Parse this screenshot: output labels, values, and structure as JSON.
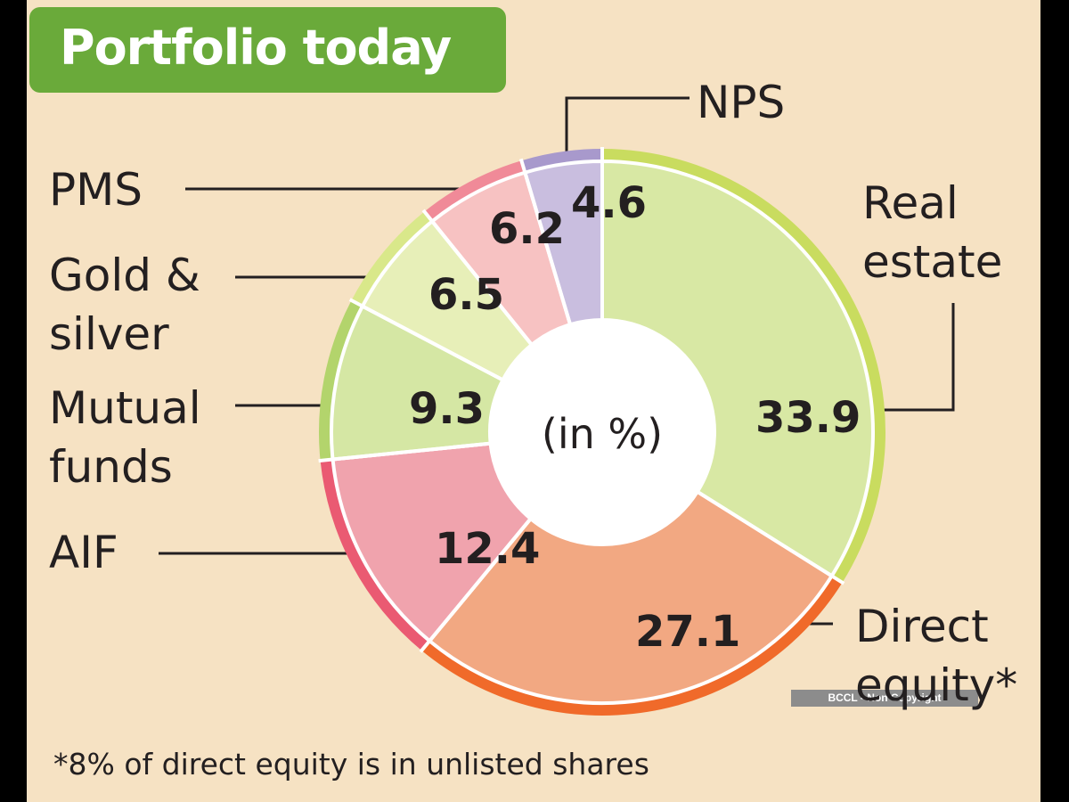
{
  "header": {
    "title": "Portfolio today"
  },
  "chart_data": {
    "type": "pie",
    "subtype": "donut",
    "center_label": "(in %)",
    "categories": [
      "Real estate",
      "Direct equity*",
      "AIF",
      "Mutual funds",
      "Gold & silver",
      "PMS",
      "NPS"
    ],
    "values": [
      33.9,
      27.1,
      12.4,
      9.3,
      6.5,
      6.2,
      4.6
    ],
    "value_labels": [
      "33.9",
      "27.1",
      "12.4",
      "9.3",
      "6.5",
      "6.2",
      "4.6"
    ],
    "label_lines": {
      "Real estate": [
        "Real",
        "estate"
      ],
      "Direct equity*": [
        "Direct",
        "equity*"
      ],
      "AIF": [
        "AIF"
      ],
      "Mutual funds": [
        "Mutual",
        "funds"
      ],
      "Gold & silver": [
        "Gold &",
        "silver"
      ],
      "PMS": [
        "PMS"
      ],
      "NPS": [
        "NPS"
      ]
    },
    "colors": {
      "fill": [
        "#d8e8a4",
        "#f2a882",
        "#f0a3ad",
        "#d5e7a4",
        "#e7efb8",
        "#f7c2c2",
        "#c9bedf"
      ],
      "rim": [
        "#c9dc5f",
        "#f06a2a",
        "#ea5a72",
        "#b3d46c",
        "#d9e88a",
        "#f08a98",
        "#a899cc"
      ]
    }
  },
  "footnote": "*8% of direct equity is in unlisted shares",
  "watermark": "BCCL - Non Copyright"
}
